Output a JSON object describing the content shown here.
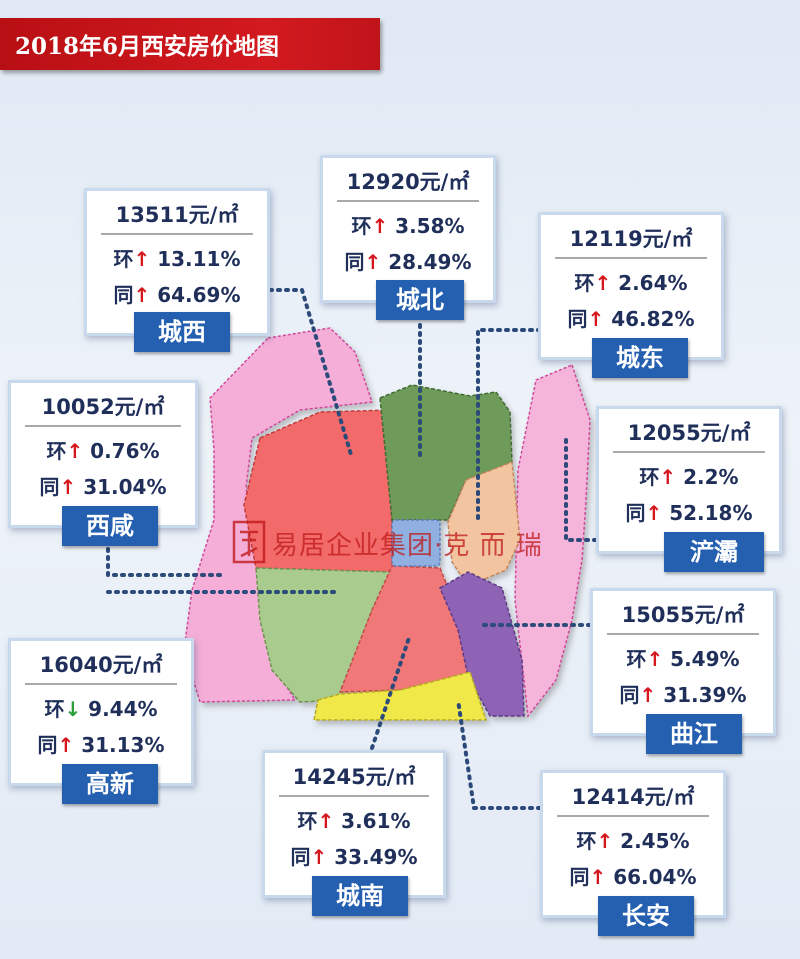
{
  "title": "2018年6月西安房价地图",
  "watermark": {
    "text": "易居企业集团·克 而 瑞"
  },
  "labels": {
    "mom": "环",
    "yoy": "同"
  },
  "colors": {
    "title_bg": "#c8141a",
    "tag_bg": "#245fb0",
    "up": "#d5161d",
    "down": "#2aa03a"
  },
  "districts": [
    {
      "id": "chengxi",
      "name": "城西",
      "price": "13511元/㎡",
      "mom_dir": "up",
      "mom": "13.11%",
      "yoy_dir": "up",
      "yoy": "64.69%",
      "color": "#f36a6a"
    },
    {
      "id": "chengbei",
      "name": "城北",
      "price": "12920元/㎡",
      "mom_dir": "up",
      "mom": "3.58%",
      "yoy_dir": "up",
      "yoy": "28.49%",
      "color": "#6e9a5a"
    },
    {
      "id": "chengdong",
      "name": "城东",
      "price": "12119元/㎡",
      "mom_dir": "up",
      "mom": "2.64%",
      "yoy_dir": "up",
      "yoy": "46.82%",
      "color": "#f3a8d2"
    },
    {
      "id": "xixian",
      "name": "西咸",
      "price": "10052元/㎡",
      "mom_dir": "up",
      "mom": "0.76%",
      "yoy_dir": "up",
      "yoy": "31.04%",
      "color": "#f5aed8"
    },
    {
      "id": "chanba",
      "name": "浐灞",
      "price": "12055元/㎡",
      "mom_dir": "up",
      "mom": "2.2%",
      "yoy_dir": "up",
      "yoy": "52.18%",
      "color": "#f2c5a0"
    },
    {
      "id": "gaoxin",
      "name": "高新",
      "price": "16040元/㎡",
      "mom_dir": "down",
      "mom": "9.44%",
      "yoy_dir": "up",
      "yoy": "31.13%",
      "color": "#a9cc8e"
    },
    {
      "id": "qujiang",
      "name": "曲江",
      "price": "15055元/㎡",
      "mom_dir": "up",
      "mom": "5.49%",
      "yoy_dir": "up",
      "yoy": "31.39%",
      "color": "#8e62b5"
    },
    {
      "id": "chengnan",
      "name": "城南",
      "price": "14245元/㎡",
      "mom_dir": "up",
      "mom": "3.61%",
      "yoy_dir": "up",
      "yoy": "33.49%",
      "color": "#f07878"
    },
    {
      "id": "changan",
      "name": "长安",
      "price": "12414元/㎡",
      "mom_dir": "up",
      "mom": "2.45%",
      "yoy_dir": "up",
      "yoy": "66.04%",
      "color": "#f0e84a"
    }
  ]
}
